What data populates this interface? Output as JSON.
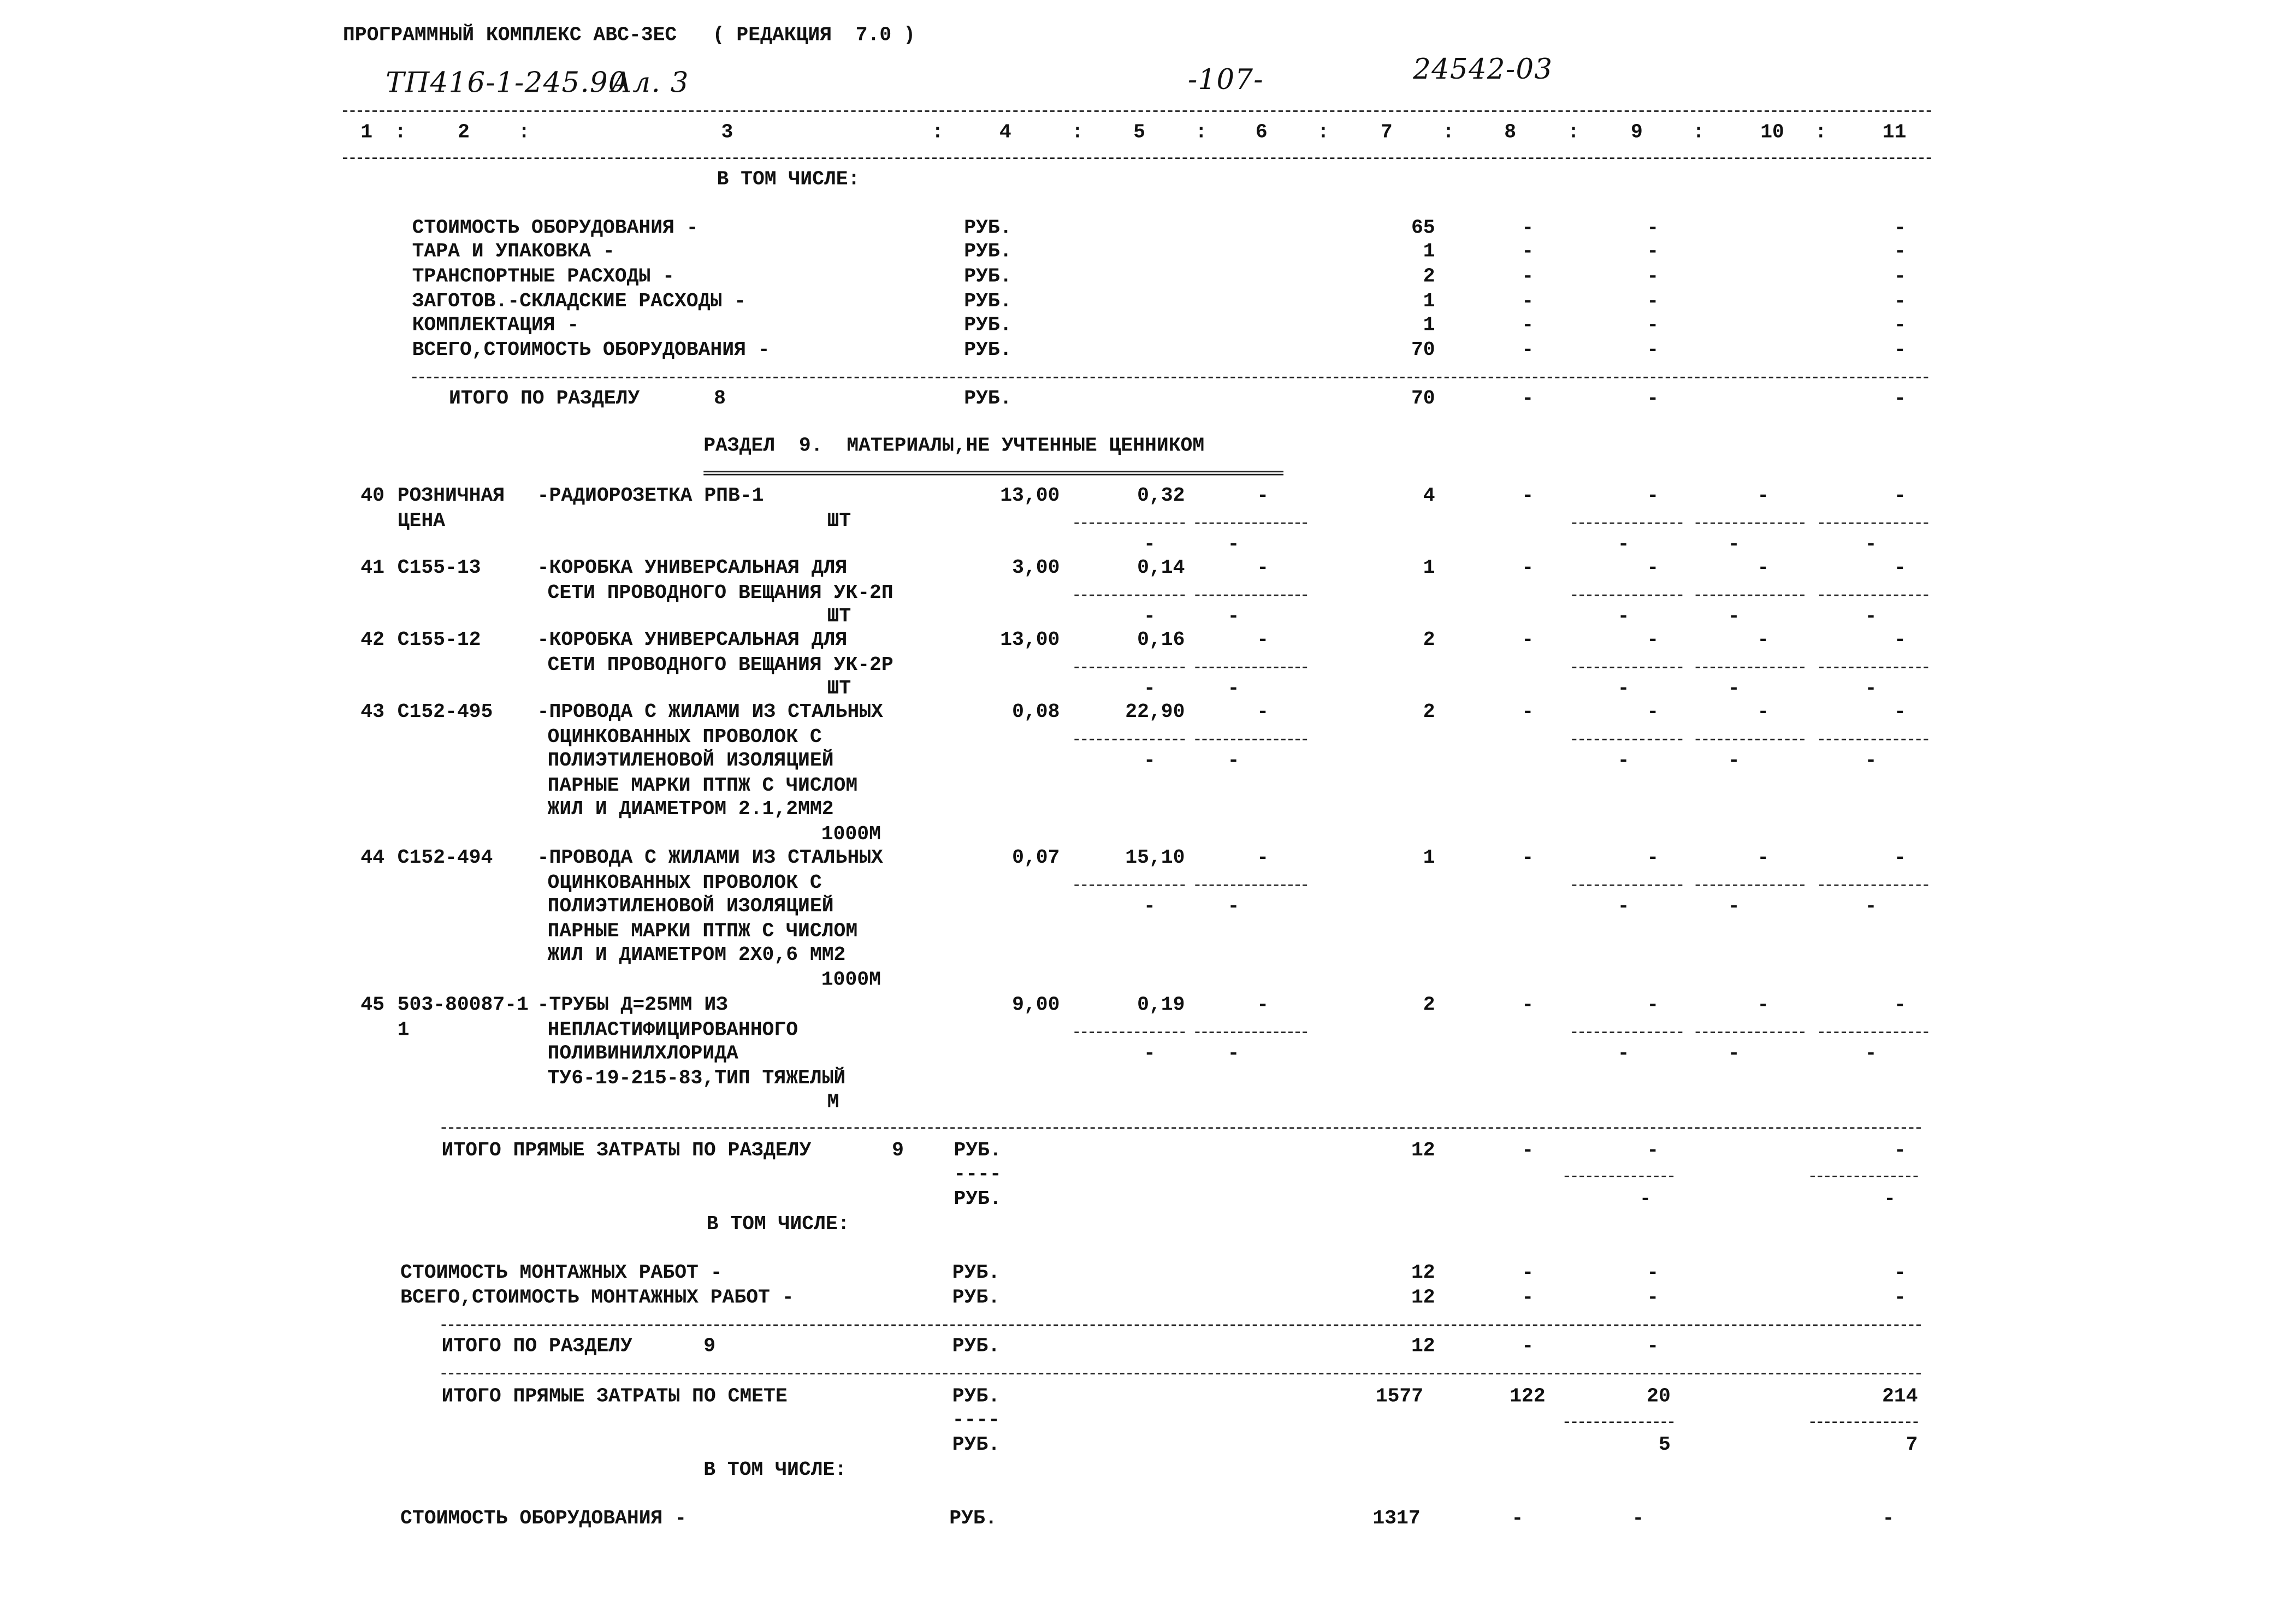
{
  "header": {
    "program_title": "ПРОГРАММНЫЙ КОМПЛЕКС АВС-3ЕС   ( РЕДАКЦИЯ  7.0 )",
    "project_code": "ТП416-1-245.90",
    "album": "Ал. 3",
    "page": "-107-",
    "doc_number": "24542-03"
  },
  "column_numbers": [
    "1",
    "2",
    "3",
    "4",
    "5",
    "6",
    "7",
    "8",
    "9",
    "10",
    "11"
  ],
  "section8_breakdown": {
    "label": "В ТОМ ЧИСЛЕ:",
    "rows": [
      {
        "name": "СТОИМОСТЬ ОБОРУДОВАНИЯ -",
        "unit": "РУБ.",
        "c7": "65",
        "c8": "-",
        "c9": "-",
        "c11": "-"
      },
      {
        "name": "ТАРА И УПАКОВКА -",
        "unit": "РУБ.",
        "c7": "1",
        "c8": "-",
        "c9": "-",
        "c11": "-"
      },
      {
        "name": "ТРАНСПОРТНЫЕ РАСХОДЫ -",
        "unit": "РУБ.",
        "c7": "2",
        "c8": "-",
        "c9": "-",
        "c11": "-"
      },
      {
        "name": "ЗАГОТОВ.-СКЛАДСКИЕ РАСХОДЫ -",
        "unit": "РУБ.",
        "c7": "1",
        "c8": "-",
        "c9": "-",
        "c11": "-"
      },
      {
        "name": "КОМПЛЕКТАЦИЯ -",
        "unit": "РУБ.",
        "c7": "1",
        "c8": "-",
        "c9": "-",
        "c11": "-"
      },
      {
        "name": "ВСЕГО,СТОИМОСТЬ ОБОРУДОВАНИЯ -",
        "unit": "РУБ.",
        "c7": "70",
        "c8": "-",
        "c9": "-",
        "c11": "-"
      }
    ]
  },
  "section8_total": {
    "label": "ИТОГО ПО РАЗДЕЛУ",
    "section": "8",
    "unit": "РУБ.",
    "c7": "70",
    "c8": "-",
    "c9": "-",
    "c11": "-"
  },
  "section9": {
    "title": "РАЗДЕЛ  9.  МАТЕРИАЛЫ,НЕ УЧТЕННЫЕ ЦЕННИКОМ",
    "items": [
      {
        "num": "40",
        "code": [
          "РОЗНИЧНАЯ",
          "ЦЕНА"
        ],
        "name": [
          "-РАДИОРОЗЕТКА РПВ-1"
        ],
        "unit": "ШТ",
        "c4": "13,00",
        "c5": "0,32",
        "c6": "-",
        "c7": "4",
        "c8": "-",
        "c9": "-",
        "c10": "-",
        "c11": "-",
        "sub": {
          "c5": "-",
          "c6": "-",
          "c9": "-",
          "c10": "-",
          "c11": "-"
        }
      },
      {
        "num": "41",
        "code": [
          "С155-13"
        ],
        "name": [
          "-КОРОБКА УНИВЕРСАЛЬНАЯ ДЛЯ",
          "СЕТИ ПРОВОДНОГО ВЕЩАНИЯ УК-2П"
        ],
        "unit": "ШТ",
        "c4": "3,00",
        "c5": "0,14",
        "c6": "-",
        "c7": "1",
        "c8": "-",
        "c9": "-",
        "c10": "-",
        "c11": "-",
        "sub": {
          "c5": "-",
          "c6": "-",
          "c9": "-",
          "c10": "-",
          "c11": "-"
        }
      },
      {
        "num": "42",
        "code": [
          "С155-12"
        ],
        "name": [
          "-КОРОБКА УНИВЕРСАЛЬНАЯ ДЛЯ",
          "СЕТИ ПРОВОДНОГО ВЕЩАНИЯ УК-2Р"
        ],
        "unit": "ШТ",
        "c4": "13,00",
        "c5": "0,16",
        "c6": "-",
        "c7": "2",
        "c8": "-",
        "c9": "-",
        "c10": "-",
        "c11": "-",
        "sub": {
          "c5": "-",
          "c6": "-",
          "c9": "-",
          "c10": "-",
          "c11": "-"
        }
      },
      {
        "num": "43",
        "code": [
          "С152-495"
        ],
        "name": [
          "-ПРОВОДА С ЖИЛАМИ ИЗ СТАЛЬНЫХ",
          "ОЦИНКОВАННЫХ ПРОВОЛОК С",
          "ПОЛИЭТИЛЕНОВОЙ ИЗОЛЯЦИЕЙ",
          "ПАРНЫЕ МАРКИ ПТПЖ С ЧИСЛОМ",
          "ЖИЛ И ДИАМЕТРОМ 2.1,2ММ2"
        ],
        "unit": "1000М",
        "c4": "0,08",
        "c5": "22,90",
        "c6": "-",
        "c7": "2",
        "c8": "-",
        "c9": "-",
        "c10": "-",
        "c11": "-",
        "sub": {
          "c5": "-",
          "c6": "-",
          "c9": "-",
          "c10": "-",
          "c11": "-"
        }
      },
      {
        "num": "44",
        "code": [
          "С152-494"
        ],
        "name": [
          "-ПРОВОДА С ЖИЛАМИ ИЗ СТАЛЬНЫХ",
          "ОЦИНКОВАННЫХ ПРОВОЛОК С",
          "ПОЛИЭТИЛЕНОВОЙ ИЗОЛЯЦИЕЙ",
          "ПАРНЫЕ МАРКИ ПТПЖ С ЧИСЛОМ",
          "ЖИЛ И ДИАМЕТРОМ 2Х0,6 ММ2"
        ],
        "unit": "1000М",
        "c4": "0,07",
        "c5": "15,10",
        "c6": "-",
        "c7": "1",
        "c8": "-",
        "c9": "-",
        "c10": "-",
        "c11": "-",
        "sub": {
          "c5": "-",
          "c6": "-",
          "c9": "-",
          "c10": "-",
          "c11": "-"
        }
      },
      {
        "num": "45",
        "code": [
          "503-80087-1",
          "1"
        ],
        "name": [
          "-ТРУБЫ Д=25ММ ИЗ",
          "НЕПЛАСТИФИЦИРОВАННОГО",
          "ПОЛИВИНИЛХЛОРИДА",
          "ТУ6-19-215-83,ТИП ТЯЖЕЛЫЙ"
        ],
        "unit": "М",
        "c4": "9,00",
        "c5": "0,19",
        "c6": "-",
        "c7": "2",
        "c8": "-",
        "c9": "-",
        "c10": "-",
        "c11": "-",
        "sub": {
          "c5": "-",
          "c6": "-",
          "c9": "-",
          "c10": "-",
          "c11": "-"
        }
      }
    ],
    "direct_total": {
      "label": "ИТОГО ПРЯМЫЕ ЗАТРАТЫ ПО РАЗДЕЛУ",
      "section": "9",
      "unit": "РУБ.",
      "c7": "12",
      "c8": "-",
      "c9": "-",
      "c11": "-",
      "sub_marker": "----",
      "sub_unit": "РУБ.",
      "sub_c9": "-",
      "sub_c11": "-"
    },
    "breakdown_label": "В ТОМ ЧИСЛЕ:",
    "breakdown": [
      {
        "name": "СТОИМОСТЬ МОНТАЖНЫХ РАБОТ -",
        "unit": "РУБ.",
        "c7": "12",
        "c8": "-",
        "c9": "-",
        "c11": "-"
      },
      {
        "name": "ВСЕГО,СТОИМОСТЬ МОНТАЖНЫХ РАБОТ -",
        "unit": "РУБ.",
        "c7": "12",
        "c8": "-",
        "c9": "-",
        "c11": "-"
      }
    ],
    "total": {
      "label": "ИТОГО ПО РАЗДЕЛУ",
      "section": "9",
      "unit": "РУБ.",
      "c7": "12",
      "c8": "-",
      "c9": "-"
    }
  },
  "estimate_total": {
    "label": "ИТОГО ПРЯМЫЕ ЗАТРАТЫ ПО СМЕТЕ",
    "unit": "РУБ.",
    "c7": "1577",
    "c8": "122",
    "c9": "20",
    "c11": "214",
    "sub_marker": "----",
    "sub_unit": "РУБ.",
    "sub_c9": "5",
    "sub_c11": "7"
  },
  "estimate_breakdown": {
    "label": "В ТОМ ЧИСЛЕ:",
    "rows": [
      {
        "name": "СТОИМОСТЬ ОБОРУДОВАНИЯ -",
        "unit": "РУБ.",
        "c7": "1317",
        "c8": "-",
        "c9": "-",
        "c11": "-"
      }
    ]
  }
}
